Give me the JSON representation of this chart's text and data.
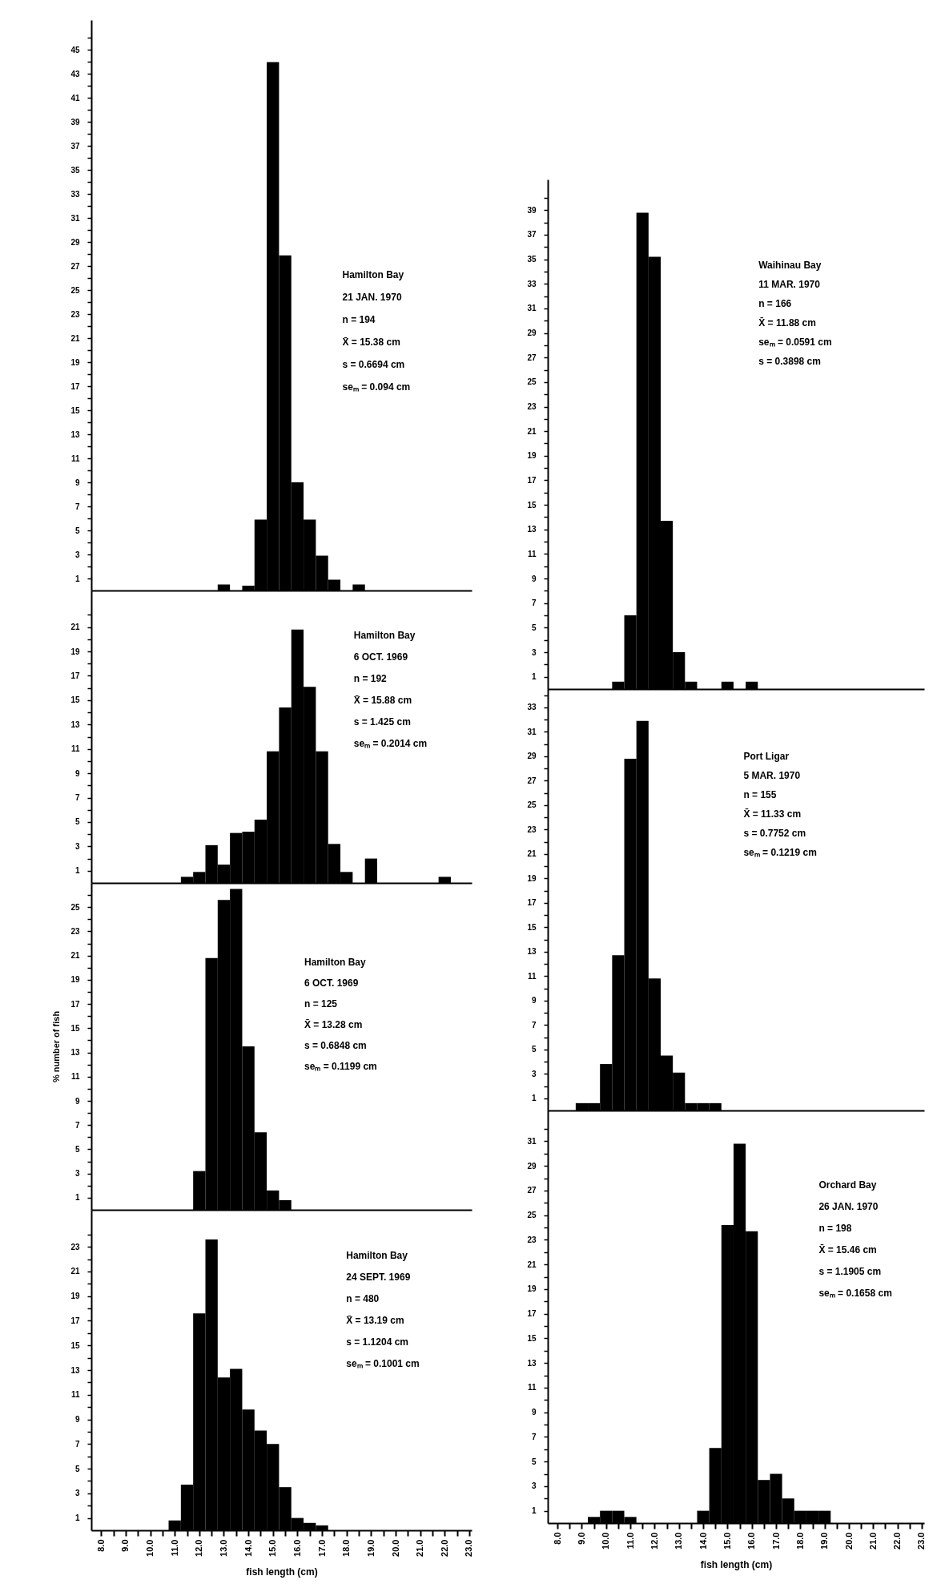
{
  "chart_data": [
    {
      "type": "histogram",
      "title": "Hamilton Bay",
      "subtitle": "21 JAN. 1970",
      "annotations": [
        "n = 194",
        "X̄ = 15.38 cm",
        "s = 0.6694 cm",
        "seₘ = 0.094 cm"
      ],
      "color": "#000000",
      "xlim": [
        7.6,
        23.1
      ],
      "ylim": [
        0,
        47.5
      ],
      "tick_labels": "y",
      "bins": [
        12.75,
        13.25,
        13.75,
        14.25,
        14.75,
        15.25,
        15.75,
        16.25,
        16.75,
        17.25,
        17.75,
        18.25,
        18.75
      ],
      "values": [
        0.5,
        0,
        0.4,
        5.9,
        44.0,
        27.9,
        9.0,
        5.9,
        2.9,
        0.9,
        0,
        0.5
      ],
      "yticks": [
        1,
        {
          "value": 2,
          "label": null
        },
        3,
        {
          "value": 4,
          "label": null
        },
        5,
        {
          "value": 6,
          "label": null
        },
        7,
        {
          "value": 8,
          "label": null
        },
        9,
        {
          "value": 10,
          "label": null
        },
        11,
        {
          "value": 12,
          "label": null
        },
        13,
        {
          "value": 14,
          "label": null
        },
        15,
        {
          "value": 16,
          "label": null
        },
        17,
        {
          "value": 18,
          "label": null
        },
        19,
        {
          "value": 20,
          "label": null
        },
        21,
        {
          "value": 22,
          "label": null
        },
        23,
        {
          "value": 24,
          "label": null
        },
        25,
        {
          "value": 26,
          "label": null
        },
        27,
        {
          "value": 28,
          "label": null
        },
        29,
        {
          "value": 30,
          "label": null
        },
        31,
        {
          "value": 32,
          "label": null
        },
        33,
        {
          "value": 34,
          "label": null
        },
        35,
        {
          "value": 36,
          "label": null
        },
        37,
        {
          "value": 38,
          "label": null
        },
        39,
        {
          "value": 40,
          "label": null
        },
        41,
        {
          "value": 42,
          "label": null
        },
        43,
        {
          "value": 44,
          "label": null
        },
        45,
        {
          "value": 46,
          "label": null
        }
      ]
    },
    {
      "type": "histogram",
      "title": "Hamilton Bay",
      "subtitle": "6 OCT. 1969",
      "annotations": [
        "n = 192",
        "X̄ = 15.88 cm",
        "s = 1.425 cm",
        "seₘ = 0.2014 cm"
      ],
      "color": "#000000",
      "xlim": [
        7.6,
        23.1
      ],
      "ylim": [
        0,
        24
      ],
      "tick_labels": "y",
      "bins": [
        11.25,
        11.75,
        12.25,
        12.75,
        13.25,
        13.75,
        14.25,
        14.75,
        15.25,
        15.75,
        16.25,
        16.75,
        17.25,
        17.75,
        18.25,
        18.75,
        19.25,
        19.75,
        20.25,
        20.75,
        21.25,
        21.75,
        22.25
      ],
      "values": [
        0.5,
        0.9,
        3.1,
        1.5,
        4.1,
        4.2,
        5.2,
        10.8,
        14.4,
        20.8,
        16.1,
        10.8,
        3.2,
        0.9,
        0,
        2.0,
        0,
        0,
        0,
        0,
        0,
        0.5
      ],
      "yticks": [
        1,
        {
          "value": 2,
          "label": null
        },
        3,
        {
          "value": 4,
          "label": null
        },
        5,
        {
          "value": 6,
          "label": null
        },
        7,
        {
          "value": 8,
          "label": null
        },
        9,
        {
          "value": 10,
          "label": null
        },
        11,
        {
          "value": 12,
          "label": null
        },
        13,
        {
          "value": 14,
          "label": null
        },
        15,
        {
          "value": 16,
          "label": null
        },
        17,
        {
          "value": 18,
          "label": null
        },
        19,
        {
          "value": 20,
          "label": null
        },
        21,
        {
          "value": 22,
          "label": null
        }
      ]
    },
    {
      "type": "histogram",
      "title": "Hamilton Bay",
      "subtitle": "6 OCT. 1969",
      "annotations": [
        "n = 125",
        "X̄ = 13.28 cm",
        "s = 0.6848 cm",
        "seₘ = 0.1199 cm"
      ],
      "ylabel": "% number of fish",
      "color": "#000000",
      "xlim": [
        7.6,
        23.1
      ],
      "ylim": [
        0,
        27
      ],
      "tick_labels": "y",
      "bins": [
        11.75,
        12.25,
        12.75,
        13.25,
        13.75,
        14.25,
        14.75,
        15.25,
        15.75
      ],
      "values": [
        3.2,
        20.8,
        25.6,
        26.5,
        13.5,
        6.4,
        1.6,
        0.8
      ],
      "yticks": [
        1,
        {
          "value": 2,
          "label": null
        },
        3,
        {
          "value": 4,
          "label": null
        },
        5,
        {
          "value": 6,
          "label": null
        },
        7,
        {
          "value": 8,
          "label": null
        },
        9,
        {
          "value": 10,
          "label": null
        },
        11,
        {
          "value": 12,
          "label": null
        },
        13,
        {
          "value": 14,
          "label": null
        },
        15,
        {
          "value": 16,
          "label": null
        },
        17,
        {
          "value": 18,
          "label": null
        },
        19,
        {
          "value": 20,
          "label": null
        },
        21,
        {
          "value": 22,
          "label": null
        },
        23,
        {
          "value": 24,
          "label": null
        },
        25,
        {
          "value": 26,
          "label": null
        }
      ]
    },
    {
      "type": "histogram",
      "title": "Hamilton Bay",
      "subtitle": "24 SEPT. 1969",
      "annotations": [
        "n = 480",
        "X̄ = 13.19 cm",
        "s = 1.1204 cm",
        "seₘ = 0.1001 cm"
      ],
      "xlabel": "fish length (cm)",
      "color": "#000000",
      "xlim": [
        7.6,
        23.1
      ],
      "ylim": [
        0,
        26
      ],
      "bins": [
        10.75,
        11.25,
        11.75,
        12.25,
        12.75,
        13.25,
        13.75,
        14.25,
        14.75,
        15.25,
        15.75,
        16.25,
        16.75,
        17.25
      ],
      "values": [
        0.8,
        3.7,
        17.6,
        23.6,
        12.4,
        13.1,
        9.8,
        8.1,
        7.0,
        3.5,
        1.0,
        0.6,
        0.4
      ],
      "xticks": [
        {
          "value": 8,
          "label": "8.0"
        },
        {
          "value": 8.5,
          "label": null
        },
        {
          "value": 9,
          "label": "9.0"
        },
        {
          "value": 9.5,
          "label": null
        },
        {
          "value": 10,
          "label": "10.0"
        },
        {
          "value": 10.5,
          "label": null
        },
        {
          "value": 11,
          "label": "11.0"
        },
        {
          "value": 11.5,
          "label": null
        },
        {
          "value": 12,
          "label": "12.0"
        },
        {
          "value": 12.5,
          "label": null
        },
        {
          "value": 13,
          "label": "13.0"
        },
        {
          "value": 13.5,
          "label": null
        },
        {
          "value": 14,
          "label": "14.0"
        },
        {
          "value": 14.5,
          "label": null
        },
        {
          "value": 15,
          "label": "15.0"
        },
        {
          "value": 15.5,
          "label": null
        },
        {
          "value": 16,
          "label": "16.0"
        },
        {
          "value": 16.5,
          "label": null
        },
        {
          "value": 17,
          "label": "17.0"
        },
        {
          "value": 17.5,
          "label": null
        },
        {
          "value": 18,
          "label": "18.0"
        },
        {
          "value": 18.5,
          "label": null
        },
        {
          "value": 19,
          "label": "19.0"
        },
        {
          "value": 19.5,
          "label": null
        },
        {
          "value": 20,
          "label": "20.0"
        },
        {
          "value": 20.5,
          "label": null
        },
        {
          "value": 21,
          "label": "21.0"
        },
        {
          "value": 21.5,
          "label": null
        },
        {
          "value": 22,
          "label": "22.0"
        },
        {
          "value": 22.5,
          "label": null
        },
        {
          "value": 23,
          "label": "23.0"
        }
      ],
      "yticks": [
        1,
        {
          "value": 2,
          "label": null
        },
        3,
        {
          "value": 4,
          "label": null
        },
        5,
        {
          "value": 6,
          "label": null
        },
        7,
        {
          "value": 8,
          "label": null
        },
        9,
        {
          "value": 10,
          "label": null
        },
        11,
        {
          "value": 12,
          "label": null
        },
        13,
        {
          "value": 14,
          "label": null
        },
        15,
        {
          "value": 16,
          "label": null
        },
        17,
        {
          "value": 18,
          "label": null
        },
        19,
        {
          "value": 20,
          "label": null
        },
        21,
        {
          "value": 22,
          "label": null
        },
        23,
        {
          "value": 24,
          "label": null
        }
      ]
    },
    {
      "type": "histogram",
      "title": "Waihinau Bay",
      "subtitle": "11 MAR. 1970",
      "annotations": [
        "n = 166",
        "X̄ = 11.88 cm",
        "seₘ = 0.0591 cm",
        "s = 0.3898 cm"
      ],
      "color": "#000000",
      "xlim": [
        7.6,
        23.1
      ],
      "ylim": [
        0,
        41.5
      ],
      "tick_labels": "y",
      "bins": [
        10.25,
        10.75,
        11.25,
        11.75,
        12.25,
        12.75,
        13.25,
        13.75,
        14.25,
        14.75,
        15.25,
        15.75,
        16.25
      ],
      "values": [
        0.6,
        6.0,
        38.8,
        35.2,
        13.7,
        3.0,
        0.6,
        0,
        0,
        0.6,
        0,
        0.6
      ],
      "yticks": [
        1,
        {
          "value": 2,
          "label": null
        },
        3,
        {
          "value": 4,
          "label": null
        },
        5,
        {
          "value": 6,
          "label": null
        },
        7,
        {
          "value": 8,
          "label": null
        },
        9,
        {
          "value": 10,
          "label": null
        },
        11,
        {
          "value": 12,
          "label": null
        },
        13,
        {
          "value": 14,
          "label": null
        },
        15,
        {
          "value": 16,
          "label": null
        },
        17,
        {
          "value": 18,
          "label": null
        },
        19,
        {
          "value": 20,
          "label": null
        },
        21,
        {
          "value": 22,
          "label": null
        },
        23,
        {
          "value": 24,
          "label": null
        },
        25,
        {
          "value": 26,
          "label": null
        },
        27,
        {
          "value": 28,
          "label": null
        },
        29,
        {
          "value": 30,
          "label": null
        },
        31,
        {
          "value": 32,
          "label": null
        },
        33,
        {
          "value": 34,
          "label": null
        },
        35,
        {
          "value": 36,
          "label": null
        },
        37,
        {
          "value": 38,
          "label": null
        },
        39,
        {
          "value": 40,
          "label": null
        }
      ]
    },
    {
      "type": "histogram",
      "title": "Port Ligar",
      "subtitle": "5 MAR. 1970",
      "annotations": [
        "n = 155",
        "X̄ = 11.33 cm",
        "s = 0.7752 cm",
        "seₘ = 0.1219 cm"
      ],
      "color": "#000000",
      "xlim": [
        7.6,
        23.1
      ],
      "ylim": [
        0,
        34.5
      ],
      "tick_labels": "y",
      "bins": [
        8.75,
        9.25,
        9.75,
        10.25,
        10.75,
        11.25,
        11.75,
        12.25,
        12.75,
        13.25,
        13.75,
        14.25,
        14.75
      ],
      "values": [
        0.6,
        0.6,
        3.8,
        12.7,
        28.8,
        31.9,
        10.8,
        4.5,
        3.1,
        0.6,
        0.6,
        0.6
      ],
      "yticks": [
        1,
        {
          "value": 2,
          "label": null
        },
        3,
        {
          "value": 4,
          "label": null
        },
        5,
        {
          "value": 6,
          "label": null
        },
        7,
        {
          "value": 8,
          "label": null
        },
        9,
        {
          "value": 10,
          "label": null
        },
        11,
        {
          "value": 12,
          "label": null
        },
        13,
        {
          "value": 14,
          "label": null
        },
        15,
        {
          "value": 16,
          "label": null
        },
        17,
        {
          "value": 18,
          "label": null
        },
        19,
        {
          "value": 20,
          "label": null
        },
        21,
        {
          "value": 22,
          "label": null
        },
        23,
        {
          "value": 24,
          "label": null
        },
        25,
        {
          "value": 26,
          "label": null
        },
        27,
        {
          "value": 28,
          "label": null
        },
        29,
        {
          "value": 30,
          "label": null
        },
        31,
        {
          "value": 32,
          "label": null
        },
        33,
        {
          "value": 34,
          "label": null
        }
      ]
    },
    {
      "type": "histogram",
      "title": "Orchard Bay",
      "subtitle": "26 JAN. 1970",
      "annotations": [
        "n = 198",
        "X̄ = 15.46 cm",
        "s = 1.1905 cm",
        "seₘ = 0.1658 cm"
      ],
      "xlabel": "fish length (cm)",
      "color": "#000000",
      "xlim": [
        7.6,
        23.1
      ],
      "ylim": [
        0,
        33.5
      ],
      "bins": [
        9.25,
        9.75,
        10.25,
        10.75,
        11.25,
        11.75,
        12.25,
        12.75,
        13.25,
        13.75,
        14.25,
        14.75,
        15.25,
        15.75,
        16.25,
        16.75,
        17.25,
        17.75,
        18.25,
        18.75,
        19.25
      ],
      "values": [
        0.5,
        1.0,
        1.0,
        0.5,
        0,
        0,
        0,
        0,
        0,
        1.0,
        6.1,
        24.2,
        30.8,
        23.7,
        3.5,
        4.0,
        2.0,
        1.0,
        1.0,
        1.0
      ],
      "xticks": [
        {
          "value": 8,
          "label": "8.0"
        },
        {
          "value": 8.5,
          "label": null
        },
        {
          "value": 9,
          "label": "9.0"
        },
        {
          "value": 9.5,
          "label": null
        },
        {
          "value": 10,
          "label": "10.0"
        },
        {
          "value": 10.5,
          "label": null
        },
        {
          "value": 11,
          "label": "11.0"
        },
        {
          "value": 11.5,
          "label": null
        },
        {
          "value": 12,
          "label": "12.0"
        },
        {
          "value": 12.5,
          "label": null
        },
        {
          "value": 13,
          "label": "13.0"
        },
        {
          "value": 13.5,
          "label": null
        },
        {
          "value": 14,
          "label": "14.0"
        },
        {
          "value": 14.5,
          "label": null
        },
        {
          "value": 15,
          "label": "15.0"
        },
        {
          "value": 15.5,
          "label": null
        },
        {
          "value": 16,
          "label": "16.0"
        },
        {
          "value": 16.5,
          "label": null
        },
        {
          "value": 17,
          "label": "17.0"
        },
        {
          "value": 17.5,
          "label": null
        },
        {
          "value": 18,
          "label": "18.0"
        },
        {
          "value": 18.5,
          "label": null
        },
        {
          "value": 19,
          "label": "19.0"
        },
        {
          "value": 19.5,
          "label": null
        },
        {
          "value": 20,
          "label": "20.0"
        },
        {
          "value": 20.5,
          "label": null
        },
        {
          "value": 21,
          "label": "21.0"
        },
        {
          "value": 21.5,
          "label": null
        },
        {
          "value": 22,
          "label": "22.0"
        },
        {
          "value": 22.5,
          "label": null
        },
        {
          "value": 23,
          "label": "23.0"
        }
      ],
      "yticks": [
        1,
        {
          "value": 2,
          "label": null
        },
        3,
        {
          "value": 4,
          "label": null
        },
        5,
        {
          "value": 6,
          "label": null
        },
        7,
        {
          "value": 8,
          "label": null
        },
        9,
        {
          "value": 10,
          "label": null
        },
        11,
        {
          "value": 12,
          "label": null
        },
        13,
        {
          "value": 14,
          "label": null
        },
        15,
        {
          "value": 16,
          "label": null
        },
        17,
        {
          "value": 18,
          "label": null
        },
        19,
        {
          "value": 20,
          "label": null
        },
        21,
        {
          "value": 22,
          "label": null
        },
        23,
        {
          "value": 24,
          "label": null
        },
        25,
        {
          "value": 26,
          "label": null
        },
        27,
        {
          "value": 28,
          "label": null
        },
        29,
        {
          "value": 30,
          "label": null
        },
        31,
        {
          "value": 32,
          "label": null
        }
      ]
    }
  ]
}
